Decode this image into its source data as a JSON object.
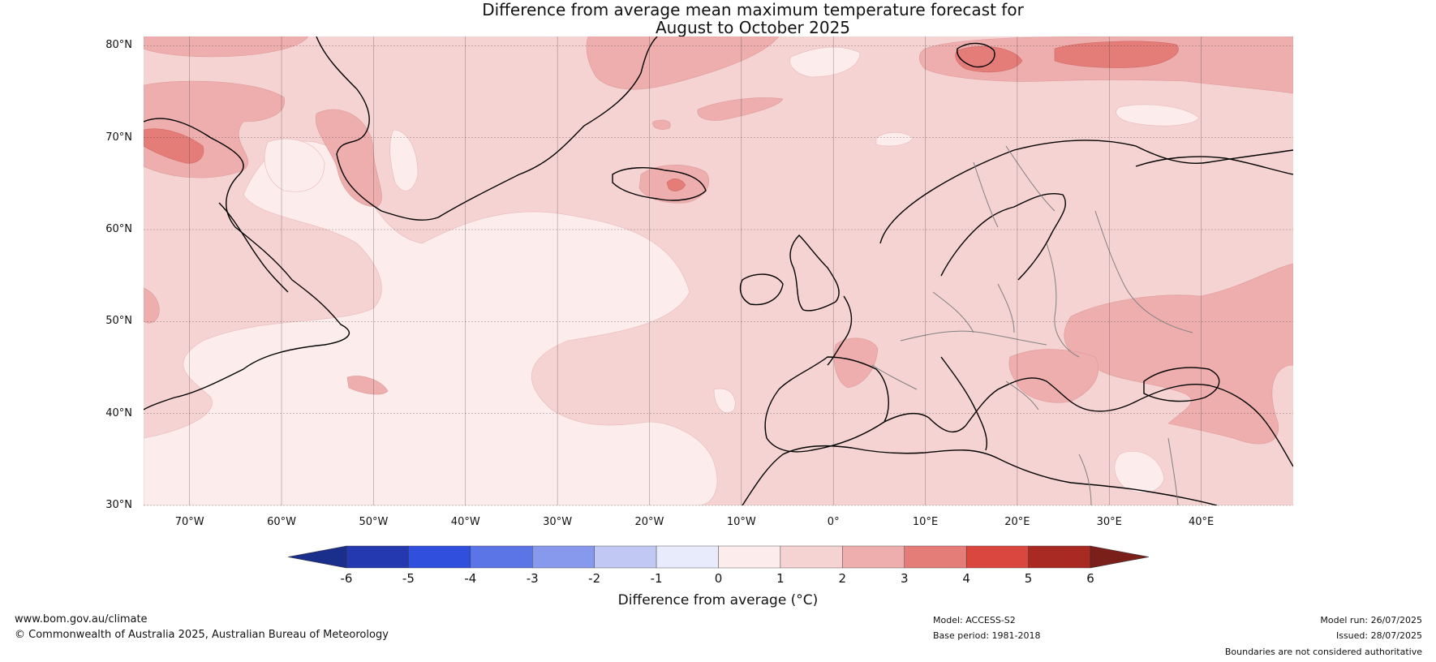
{
  "title": {
    "line1": "Difference from average mean maximum temperature forecast for",
    "line2": "August to October 2025"
  },
  "axes": {
    "lat_labels": [
      "80°N",
      "70°N",
      "60°N",
      "50°N",
      "40°N",
      "30°N"
    ],
    "lon_labels": [
      "70°W",
      "60°W",
      "50°W",
      "40°W",
      "30°W",
      "20°W",
      "10°W",
      "0°",
      "10°E",
      "20°E",
      "30°E",
      "40°E"
    ],
    "lat_values": [
      80,
      70,
      60,
      50,
      40,
      30
    ],
    "lon_values": [
      -70,
      -60,
      -50,
      -40,
      -30,
      -20,
      -10,
      0,
      10,
      20,
      30,
      40
    ],
    "lat_range": [
      30,
      81
    ],
    "lon_range": [
      -75,
      50
    ]
  },
  "colorbar": {
    "ticks": [
      "-6",
      "-5",
      "-4",
      "-3",
      "-2",
      "-1",
      "0",
      "1",
      "2",
      "3",
      "4",
      "5",
      "6"
    ],
    "colors": [
      "#1a2e8c",
      "#2438b0",
      "#2f4fdc",
      "#5b74e6",
      "#8799ec",
      "#c0c8f3",
      "#e8ebfb",
      "#fcecec",
      "#f6d3d3",
      "#eeaeae",
      "#e47c78",
      "#d9473e",
      "#a82a22",
      "#7a1f1a"
    ],
    "label": "Difference from average (°C)"
  },
  "legend_colors": {
    "0to1": "#fcecec",
    "1to2": "#f6d3d3",
    "2to3": "#eeaeae",
    "3to4": "#e47c78"
  },
  "footer": {
    "website": "www.bom.gov.au/climate",
    "copyright": "© Commonwealth of Australia 2025, Australian Bureau of Meteorology",
    "model": "Model: ACCESS-S2",
    "base_period": "Base period: 1981-2018",
    "model_run": "Model run: 26/07/2025",
    "issued": "Issued: 28/07/2025",
    "disclaimer": "Boundaries are not considered authoritative"
  }
}
